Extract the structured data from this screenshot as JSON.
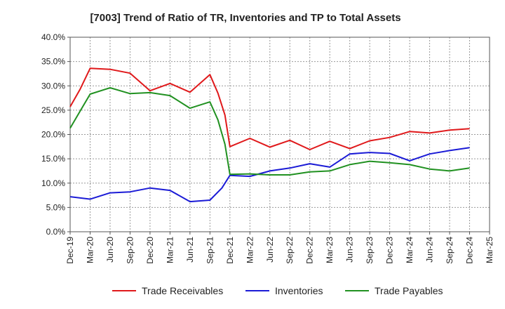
{
  "chart_data": {
    "type": "line",
    "title": "[7003]  Trend of Ratio of TR, Inventories and TP to Total Assets",
    "xlabel": "",
    "ylabel": "",
    "ylim": [
      0,
      40
    ],
    "y_ticks": [
      "0.0%",
      "5.0%",
      "10.0%",
      "15.0%",
      "20.0%",
      "25.0%",
      "30.0%",
      "35.0%",
      "40.0%"
    ],
    "y_tick_values": [
      0,
      5,
      10,
      15,
      20,
      25,
      30,
      35,
      40
    ],
    "x_tick_labels": [
      "Dec-19",
      "Mar-20",
      "Jun-20",
      "Sep-20",
      "Dec-20",
      "Mar-21",
      "Jun-21",
      "Sep-21",
      "Dec-21",
      "Mar-22",
      "Jun-22",
      "Sep-22",
      "Dec-22",
      "Mar-23",
      "Jun-23",
      "Sep-23",
      "Dec-23",
      "Mar-24",
      "Jun-24",
      "Sep-24",
      "Dec-24",
      "Mar-25"
    ],
    "grid": true,
    "legend_position": "bottom",
    "series": [
      {
        "name": "Trade Receivables",
        "color": "#e0191b",
        "points": [
          [
            0,
            25.7
          ],
          [
            0.5,
            29.3
          ],
          [
            1,
            33.6
          ],
          [
            2,
            33.4
          ],
          [
            3,
            32.6
          ],
          [
            4,
            29.0
          ],
          [
            5,
            30.5
          ],
          [
            6,
            28.7
          ],
          [
            7,
            32.3
          ],
          [
            7.4,
            28.5
          ],
          [
            7.75,
            24.0
          ],
          [
            8,
            17.5
          ],
          [
            9,
            19.2
          ],
          [
            10,
            17.4
          ],
          [
            11,
            18.8
          ],
          [
            12,
            16.9
          ],
          [
            13,
            18.6
          ],
          [
            14,
            17.1
          ],
          [
            15,
            18.7
          ],
          [
            16,
            19.4
          ],
          [
            17,
            20.6
          ],
          [
            18,
            20.3
          ],
          [
            19,
            20.9
          ],
          [
            20,
            21.2
          ]
        ]
      },
      {
        "name": "Inventories",
        "color": "#1b1bd6",
        "points": [
          [
            0,
            7.2
          ],
          [
            1,
            6.7
          ],
          [
            2,
            8.0
          ],
          [
            3,
            8.2
          ],
          [
            4,
            9.0
          ],
          [
            5,
            8.5
          ],
          [
            6,
            6.2
          ],
          [
            7,
            6.5
          ],
          [
            7.6,
            9.0
          ],
          [
            8,
            11.6
          ],
          [
            9,
            11.4
          ],
          [
            10,
            12.5
          ],
          [
            11,
            13.1
          ],
          [
            12,
            14.0
          ],
          [
            13,
            13.3
          ],
          [
            14,
            16.0
          ],
          [
            15,
            16.3
          ],
          [
            16,
            16.1
          ],
          [
            17,
            14.6
          ],
          [
            18,
            16.0
          ],
          [
            19,
            16.7
          ],
          [
            20,
            17.3
          ]
        ]
      },
      {
        "name": "Trade Payables",
        "color": "#219121",
        "points": [
          [
            0,
            21.3
          ],
          [
            0.5,
            24.8
          ],
          [
            1,
            28.3
          ],
          [
            2,
            29.6
          ],
          [
            3,
            28.4
          ],
          [
            4,
            28.6
          ],
          [
            5,
            28.0
          ],
          [
            6,
            25.4
          ],
          [
            7,
            26.7
          ],
          [
            7.4,
            23.0
          ],
          [
            7.75,
            18.0
          ],
          [
            8,
            11.8
          ],
          [
            9,
            11.9
          ],
          [
            10,
            11.7
          ],
          [
            11,
            11.7
          ],
          [
            12,
            12.3
          ],
          [
            13,
            12.5
          ],
          [
            14,
            13.8
          ],
          [
            15,
            14.5
          ],
          [
            16,
            14.2
          ],
          [
            17,
            13.8
          ],
          [
            18,
            12.9
          ],
          [
            19,
            12.5
          ],
          [
            20,
            13.1
          ]
        ]
      }
    ]
  }
}
